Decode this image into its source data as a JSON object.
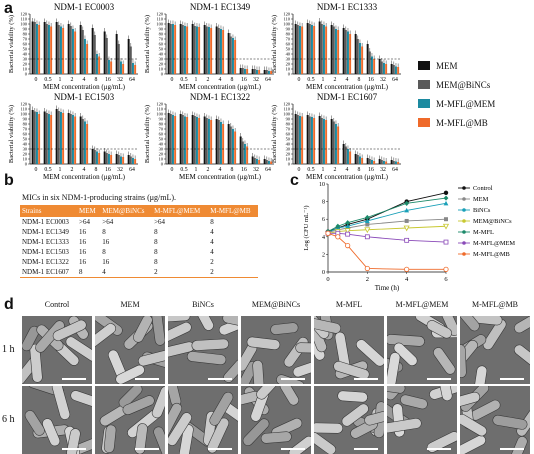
{
  "panel_letters": {
    "a": "a",
    "b": "b",
    "c": "c",
    "d": "d"
  },
  "chart_data": [
    {
      "type": "bar",
      "title": "NDM-1 EC0003",
      "xlabel": "MEM concentration (μg/mL)",
      "ylabel": "Bacterial viability (%)",
      "ylim": [
        0,
        120
      ],
      "yticks": [
        "0",
        "10",
        "20",
        "30",
        "40",
        "50",
        "60",
        "70",
        "80",
        "90",
        "100",
        "110",
        "120"
      ],
      "categories": [
        "0",
        "0.5",
        "1",
        "2",
        "4",
        "8",
        "16",
        "32",
        "64"
      ],
      "series": [
        {
          "name": "MEM",
          "values": [
            105,
            104,
            104,
            100,
            98,
            92,
            85,
            80,
            70
          ]
        },
        {
          "name": "MEM@BiNCs",
          "values": [
            104,
            100,
            98,
            96,
            88,
            78,
            72,
            60,
            55
          ]
        },
        {
          "name": "M-MFL@MEM",
          "values": [
            100,
            98,
            95,
            90,
            70,
            40,
            28,
            25,
            22
          ]
        },
        {
          "name": "M-MFL@MB",
          "values": [
            98,
            95,
            92,
            85,
            60,
            35,
            25,
            20,
            18
          ]
        }
      ],
      "threshold": 30
    },
    {
      "type": "bar",
      "title": "NDM-1 EC1349",
      "xlabel": "MEM concentration (μg/mL)",
      "ylabel": "Bacterial viability (%)",
      "ylim": [
        0,
        120
      ],
      "yticks": [
        "0",
        "10",
        "20",
        "30",
        "40",
        "50",
        "60",
        "70",
        "80",
        "90",
        "100",
        "110",
        "120"
      ],
      "categories": [
        "0",
        "0.5",
        "1",
        "2",
        "4",
        "8",
        "16",
        "32",
        "64"
      ],
      "series": [
        {
          "name": "MEM",
          "values": [
            102,
            100,
            100,
            98,
            95,
            82,
            12,
            10,
            8
          ]
        },
        {
          "name": "MEM@BiNCs",
          "values": [
            100,
            98,
            96,
            95,
            92,
            75,
            12,
            10,
            8
          ]
        },
        {
          "name": "M-MFL@MEM",
          "values": [
            100,
            96,
            95,
            94,
            90,
            72,
            10,
            8,
            6
          ]
        },
        {
          "name": "M-MFL@MB",
          "values": [
            98,
            95,
            94,
            92,
            88,
            68,
            10,
            8,
            6
          ]
        }
      ],
      "threshold": 30
    },
    {
      "type": "bar",
      "title": "NDM-1 EC1333",
      "xlabel": "MEM concentration (μg/mL)",
      "ylabel": "Bacterial viability (%)",
      "ylim": [
        0,
        120
      ],
      "yticks": [
        "0",
        "10",
        "20",
        "30",
        "40",
        "50",
        "60",
        "70",
        "80",
        "90",
        "100",
        "110",
        "120"
      ],
      "categories": [
        "0",
        "0.5",
        "1",
        "2",
        "4",
        "8",
        "16",
        "32",
        "64"
      ],
      "series": [
        {
          "name": "MEM",
          "values": [
            100,
            102,
            105,
            98,
            92,
            80,
            60,
            30,
            20
          ]
        },
        {
          "name": "MEM@BiNCs",
          "values": [
            98,
            100,
            100,
            95,
            88,
            70,
            45,
            25,
            18
          ]
        },
        {
          "name": "M-MFL@MEM",
          "values": [
            96,
            98,
            98,
            90,
            85,
            62,
            35,
            22,
            15
          ]
        },
        {
          "name": "M-MFL@MB",
          "values": [
            95,
            96,
            95,
            88,
            80,
            55,
            30,
            20,
            14
          ]
        }
      ],
      "threshold": 30
    },
    {
      "type": "bar",
      "title": "NDM-1 EC1503",
      "xlabel": "MEM concentration (μg/mL)",
      "ylabel": "Bacterial viability (%)",
      "ylim": [
        0,
        120
      ],
      "yticks": [
        "0",
        "10",
        "20",
        "30",
        "40",
        "50",
        "60",
        "70",
        "80",
        "90",
        "100",
        "110",
        "120"
      ],
      "categories": [
        "0",
        "0.5",
        "1",
        "2",
        "4",
        "8",
        "16",
        "32",
        "64"
      ],
      "series": [
        {
          "name": "MEM",
          "values": [
            108,
            105,
            110,
            102,
            95,
            30,
            25,
            20,
            18
          ]
        },
        {
          "name": "MEM@BiNCs",
          "values": [
            105,
            102,
            106,
            100,
            90,
            28,
            22,
            18,
            15
          ]
        },
        {
          "name": "M-MFL@MEM",
          "values": [
            104,
            100,
            104,
            98,
            85,
            25,
            20,
            15,
            12
          ]
        },
        {
          "name": "M-MFL@MB",
          "values": [
            100,
            98,
            102,
            95,
            80,
            22,
            18,
            14,
            10
          ]
        }
      ],
      "threshold": 30
    },
    {
      "type": "bar",
      "title": "NDM-1 EC1322",
      "xlabel": "MEM concentration (μg/mL)",
      "ylabel": "Bacterial viability (%)",
      "ylim": [
        0,
        120
      ],
      "yticks": [
        "0",
        "10",
        "20",
        "30",
        "40",
        "50",
        "60",
        "70",
        "80",
        "90",
        "100",
        "110",
        "120"
      ],
      "categories": [
        "0",
        "0.5",
        "1",
        "2",
        "4",
        "8",
        "16",
        "32",
        "64"
      ],
      "series": [
        {
          "name": "MEM",
          "values": [
            102,
            100,
            98,
            95,
            90,
            80,
            55,
            15,
            10
          ]
        },
        {
          "name": "MEM@BiNCs",
          "values": [
            100,
            98,
            96,
            92,
            88,
            75,
            45,
            12,
            8
          ]
        },
        {
          "name": "M-MFL@MEM",
          "values": [
            98,
            95,
            94,
            90,
            84,
            70,
            40,
            10,
            6
          ]
        },
        {
          "name": "M-MFL@MB",
          "values": [
            96,
            94,
            92,
            88,
            80,
            65,
            35,
            8,
            5
          ]
        }
      ],
      "threshold": 30
    },
    {
      "type": "bar",
      "title": "NDM-1 EC1607",
      "xlabel": "MEM concentration (μg/mL)",
      "ylabel": "Bacterial viability (%)",
      "ylim": [
        0,
        120
      ],
      "yticks": [
        "0",
        "10",
        "20",
        "30",
        "40",
        "50",
        "60",
        "70",
        "80",
        "90",
        "100",
        "110",
        "120"
      ],
      "categories": [
        "0",
        "0.5",
        "1",
        "2",
        "4",
        "8",
        "16",
        "32",
        "64"
      ],
      "series": [
        {
          "name": "MEM",
          "values": [
            100,
            98,
            96,
            90,
            40,
            20,
            12,
            10,
            8
          ]
        },
        {
          "name": "MEM@BiNCs",
          "values": [
            98,
            95,
            92,
            85,
            35,
            18,
            10,
            8,
            6
          ]
        },
        {
          "name": "M-MFL@MEM",
          "values": [
            96,
            94,
            90,
            80,
            30,
            15,
            8,
            6,
            5
          ]
        },
        {
          "name": "M-MFL@MB",
          "values": [
            95,
            92,
            88,
            75,
            25,
            12,
            6,
            5,
            4
          ]
        }
      ],
      "threshold": 30
    },
    {
      "type": "line",
      "xlabel": "Time (h)",
      "ylabel": "Log (CFU mL⁻¹)",
      "xlim": [
        0,
        6
      ],
      "ylim": [
        0,
        10
      ],
      "xticks": [
        "0",
        "2",
        "4",
        "6"
      ],
      "yticks": [
        "0",
        "2",
        "4",
        "6",
        "8",
        "10"
      ],
      "legend_position": "top-right",
      "x": [
        0,
        0.5,
        1,
        2,
        4,
        6
      ],
      "series": [
        {
          "name": "Control",
          "values": [
            4.6,
            5.0,
            5.4,
            6.0,
            8.0,
            9.0
          ]
        },
        {
          "name": "MEM",
          "values": [
            4.5,
            4.8,
            5.0,
            5.4,
            5.8,
            6.0
          ]
        },
        {
          "name": "BiNCs",
          "values": [
            4.5,
            5.0,
            5.2,
            5.8,
            7.0,
            7.8
          ]
        },
        {
          "name": "MEM@BiNCs",
          "values": [
            4.4,
            4.6,
            4.7,
            4.8,
            5.0,
            5.2
          ]
        },
        {
          "name": "M-MFL",
          "values": [
            4.6,
            5.2,
            5.6,
            6.2,
            7.8,
            8.4
          ]
        },
        {
          "name": "M-MFL@MEM",
          "values": [
            4.4,
            4.4,
            4.3,
            4.0,
            3.6,
            3.4
          ]
        },
        {
          "name": "M-MFL@MB",
          "values": [
            4.4,
            4.0,
            3.0,
            0.4,
            0.3,
            0.3
          ]
        }
      ]
    }
  ],
  "legend_a": {
    "items": [
      {
        "name": "MEM",
        "color": "#111111"
      },
      {
        "name": "MEM@BiNCs",
        "color": "#5a5a5a"
      },
      {
        "name": "M-MFL@MEM",
        "color": "#1c8aa0"
      },
      {
        "name": "M-MFL@MB",
        "color": "#ef6a2a"
      }
    ]
  },
  "table": {
    "title": "MICs in six NDM-1-producing strains (μg/mL).",
    "headers": [
      "Strains",
      "MEM",
      "MEM@BiNCs",
      "M-MFL@MEM",
      "M-MFL@MB"
    ],
    "rows": [
      [
        "NDM-1 EC0003",
        ">64",
        ">64",
        ">64",
        "8"
      ],
      [
        "NDM-1 EC1349",
        "16",
        "8",
        "8",
        "4"
      ],
      [
        "NDM-1 EC1333",
        "16",
        "16",
        "8",
        "4"
      ],
      [
        "NDM-1 EC1503",
        "16",
        "8",
        "8",
        "4"
      ],
      [
        "NDM-1 EC1322",
        "16",
        "16",
        "8",
        "2"
      ],
      [
        "NDM-1 EC1607",
        "8",
        "4",
        "2",
        "2"
      ]
    ]
  },
  "micrographs": {
    "columns": [
      "Control",
      "MEM",
      "BiNCs",
      "MEM@BiNCs",
      "M-MFL",
      "M-MFL@MEM",
      "M-MFL@MB"
    ],
    "rows": [
      "1 h",
      "6 h"
    ]
  },
  "colors": {
    "MEM": "#111111",
    "MEM@BiNCs": "#5a5a5a",
    "M-MFL@MEM": "#1c8aa0",
    "M-MFL@MB": "#ef6a2a",
    "header": "#ef8a33"
  }
}
